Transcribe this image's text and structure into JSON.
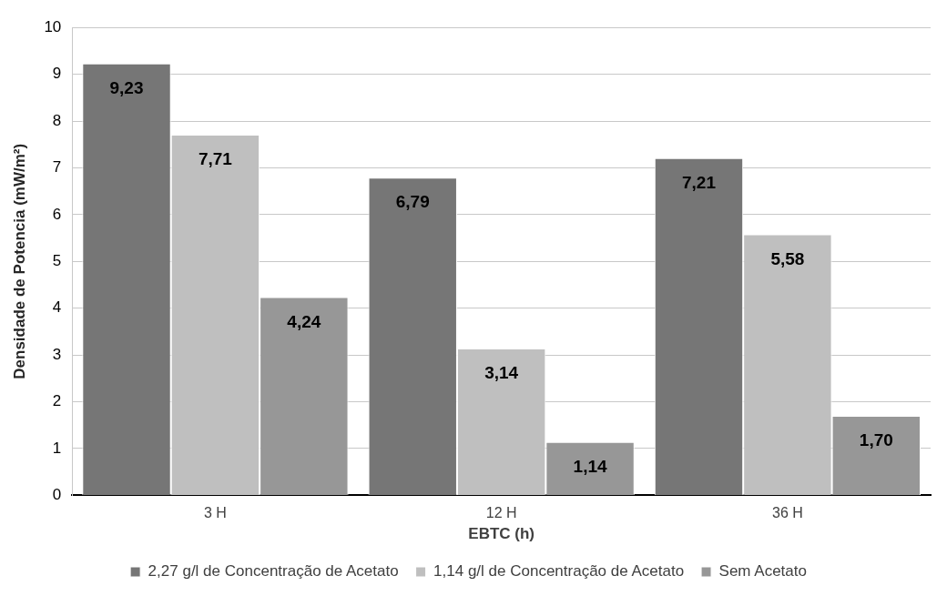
{
  "chart_data": {
    "type": "bar",
    "xlabel": "EBTC (h)",
    "ylabel": "Densidade de Potencia (mW/m²)",
    "categories": [
      "3 H",
      "12 H",
      "36 H"
    ],
    "series": [
      {
        "name": "2,27 g/l de Concentração de Acetato",
        "color": "#767676",
        "values": [
          9.23,
          6.79,
          7.21
        ],
        "value_labels": [
          "9,23",
          "6,79",
          "7,21"
        ]
      },
      {
        "name": "1,14 g/l de Concentração de Acetato",
        "color": "#bfbfbf",
        "values": [
          7.71,
          3.14,
          5.58
        ],
        "value_labels": [
          "7,71",
          "3,14",
          "5,58"
        ]
      },
      {
        "name": "Sem Acetato",
        "color": "#979797",
        "values": [
          4.24,
          1.14,
          1.7
        ],
        "value_labels": [
          "4,24",
          "1,14",
          "1,70"
        ]
      }
    ],
    "ylim": [
      0,
      10
    ],
    "yticks": [
      0,
      1,
      2,
      3,
      4,
      5,
      6,
      7,
      8,
      9,
      10
    ],
    "grid": "y",
    "legend": "bottom"
  }
}
